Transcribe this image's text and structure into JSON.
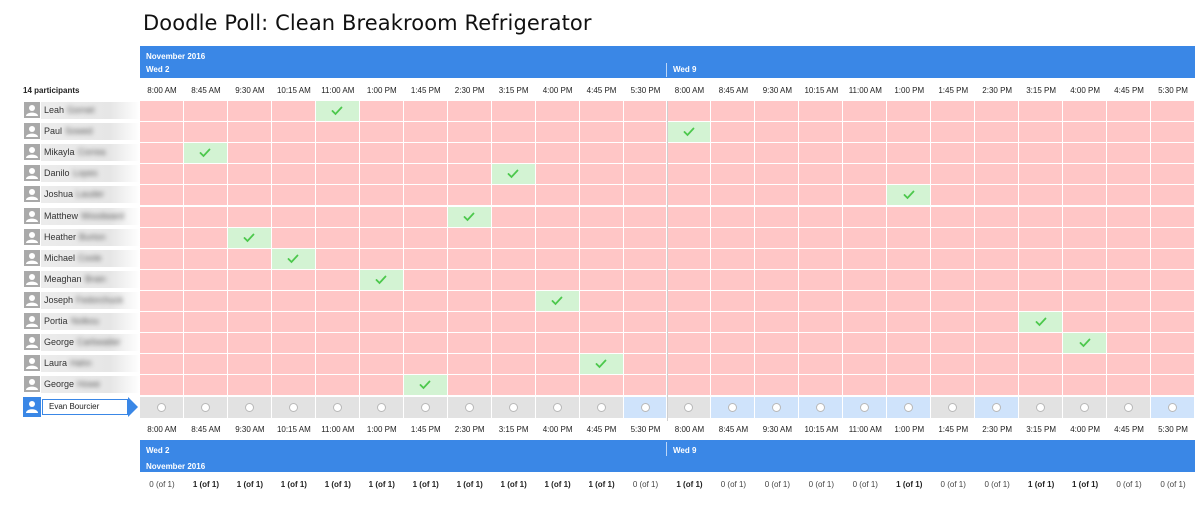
{
  "title": "Doodle Poll: Clean Breakroom Refrigerator",
  "month": "November 2016",
  "days": [
    {
      "label": "Wed 2",
      "times": [
        "8:00 AM",
        "8:45 AM",
        "9:30 AM",
        "10:15 AM",
        "11:00 AM",
        "1:00 PM",
        "1:45 PM",
        "2:30 PM",
        "3:15 PM",
        "4:00 PM",
        "4:45 PM",
        "5:30 PM"
      ]
    },
    {
      "label": "Wed 9",
      "times": [
        "8:00 AM",
        "8:45 AM",
        "9:30 AM",
        "10:15 AM",
        "11:00 AM",
        "1:00 PM",
        "1:45 PM",
        "2:30 PM",
        "3:15 PM",
        "4:00 PM",
        "4:45 PM",
        "5:30 PM"
      ]
    }
  ],
  "participants_label": "14 participants",
  "participants": [
    {
      "first": "Leah",
      "last": "Gornet",
      "yes": 4
    },
    {
      "first": "Paul",
      "last": "Sowed",
      "yes": 12
    },
    {
      "first": "Mikayla",
      "last": "Correa",
      "yes": 1
    },
    {
      "first": "Danilo",
      "last": "Lopes",
      "yes": 8
    },
    {
      "first": "Joshua",
      "last": "Lauder",
      "yes": 17
    },
    {
      "first": "Matthew",
      "last": "Woodward",
      "yes": 7
    },
    {
      "first": "Heather",
      "last": "Burton",
      "yes": 2
    },
    {
      "first": "Michael",
      "last": "Coole",
      "yes": 3
    },
    {
      "first": "Meaghan",
      "last": "Brain",
      "yes": 5
    },
    {
      "first": "Joseph",
      "last": "Fedorchuck",
      "yes": 9
    },
    {
      "first": "Portia",
      "last": "Nolkou",
      "yes": 20
    },
    {
      "first": "George",
      "last": "Carbwaiter",
      "yes": 21
    },
    {
      "first": "Laura",
      "last": "Hahn",
      "yes": 10
    },
    {
      "first": "George",
      "last": "Howe",
      "yes": 6
    }
  ],
  "current_user": {
    "name": "Evan Bourcier"
  },
  "totals": [
    "0 (of 1)",
    "1 (of 1)",
    "1 (of 1)",
    "1 (of 1)",
    "1 (of 1)",
    "1 (of 1)",
    "1 (of 1)",
    "1 (of 1)",
    "1 (of 1)",
    "1 (of 1)",
    "1 (of 1)",
    "0 (of 1)",
    "1 (of 1)",
    "0 (of 1)",
    "0 (of 1)",
    "0 (of 1)",
    "0 (of 1)",
    "1 (of 1)",
    "0 (of 1)",
    "0 (of 1)",
    "1 (of 1)",
    "1 (of 1)",
    "0 (of 1)",
    "0 (of 1)"
  ],
  "colors": {
    "accent": "#3a87e6",
    "no": "#ffc6c6",
    "yes": "#d3f3d3",
    "check": "#4cc84c"
  }
}
